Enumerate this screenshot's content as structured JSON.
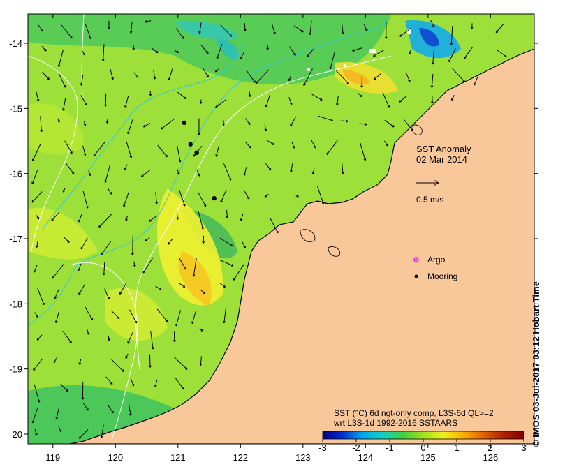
{
  "map": {
    "title": "SST Anomaly",
    "date": "02 Mar 2014",
    "velocity_scale": "0.5 m/s",
    "colors": {
      "land": "#f8c89a",
      "coast": "#000000",
      "contour": "#ffffff",
      "isobath": "#2ec8d8",
      "frame": "#000000"
    },
    "x_ticks": [
      119,
      120,
      121,
      122,
      123,
      124,
      125,
      126
    ],
    "y_ticks": [
      -14,
      -15,
      -16,
      -17,
      -18,
      -19,
      -20
    ],
    "lon_range": [
      118.6,
      126.7
    ],
    "lat_range": [
      -20.15,
      -13.55
    ]
  },
  "legend": {
    "argo_label": "Argo",
    "mooring_label": "Mooring",
    "argo_color": "#e020e0",
    "mooring_color": "#000000"
  },
  "colorbar": {
    "title_line1": "SST (°C) 6d ngt-only comp, L3S-6d QL>=2",
    "title_line2": "wrt L3S-1d 1992-2016 SSTAARS",
    "ticks": [
      "-3",
      "-2",
      "-1",
      "0",
      "1",
      "2",
      "3"
    ],
    "range": [
      -3,
      3
    ],
    "stops": [
      "#00008b",
      "#0030d0",
      "#00a8f0",
      "#10d0c0",
      "#40d040",
      "#a0e020",
      "#f0f020",
      "#f8b000",
      "#e06000",
      "#b02000",
      "#800000"
    ]
  },
  "moorings": [
    {
      "lon": 121.1,
      "lat": -15.22
    },
    {
      "lon": 121.2,
      "lat": -15.55
    },
    {
      "lon": 121.3,
      "lat": -15.68
    },
    {
      "lon": 121.58,
      "lat": -16.38
    }
  ],
  "credit": "© IMOS 03-Jul-2017 03:12 Hobart Time"
}
